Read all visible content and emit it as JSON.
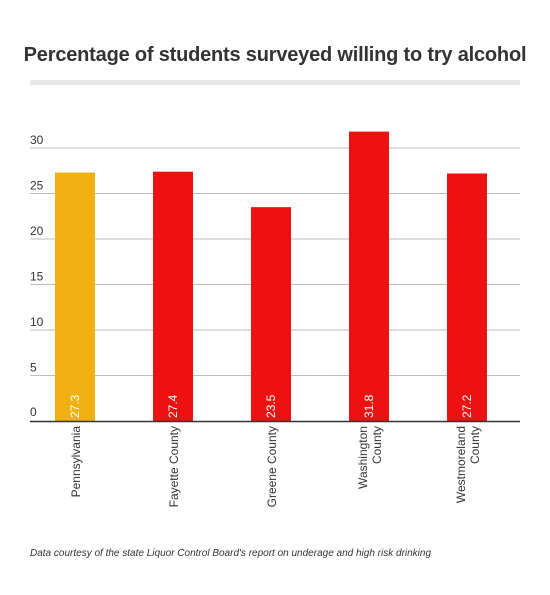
{
  "chart_data": {
    "type": "bar",
    "title": "Percentage of students surveyed willing to try alcohol",
    "categories": [
      [
        "Pennsylvania"
      ],
      [
        "Fayette County"
      ],
      [
        "Greene County"
      ],
      [
        "Washington",
        "County"
      ],
      [
        "Westmoreland",
        "County"
      ]
    ],
    "values": [
      27.3,
      27.4,
      23.5,
      31.8,
      27.2
    ],
    "value_labels": [
      "27.3",
      "27.4",
      "23.5",
      "31.8",
      "27.2"
    ],
    "colors": [
      "#f0b014",
      "#ee1111",
      "#ee1111",
      "#ee1111",
      "#ee1111"
    ],
    "yticks": [
      0,
      5,
      10,
      15,
      20,
      25,
      30
    ],
    "ylim": [
      0,
      32
    ],
    "grid": true,
    "legend": "none",
    "xlabel": "",
    "ylabel": ""
  },
  "footnote": "Data courtesy of the state Liquor Control Board's report on underage and high risk drinking"
}
